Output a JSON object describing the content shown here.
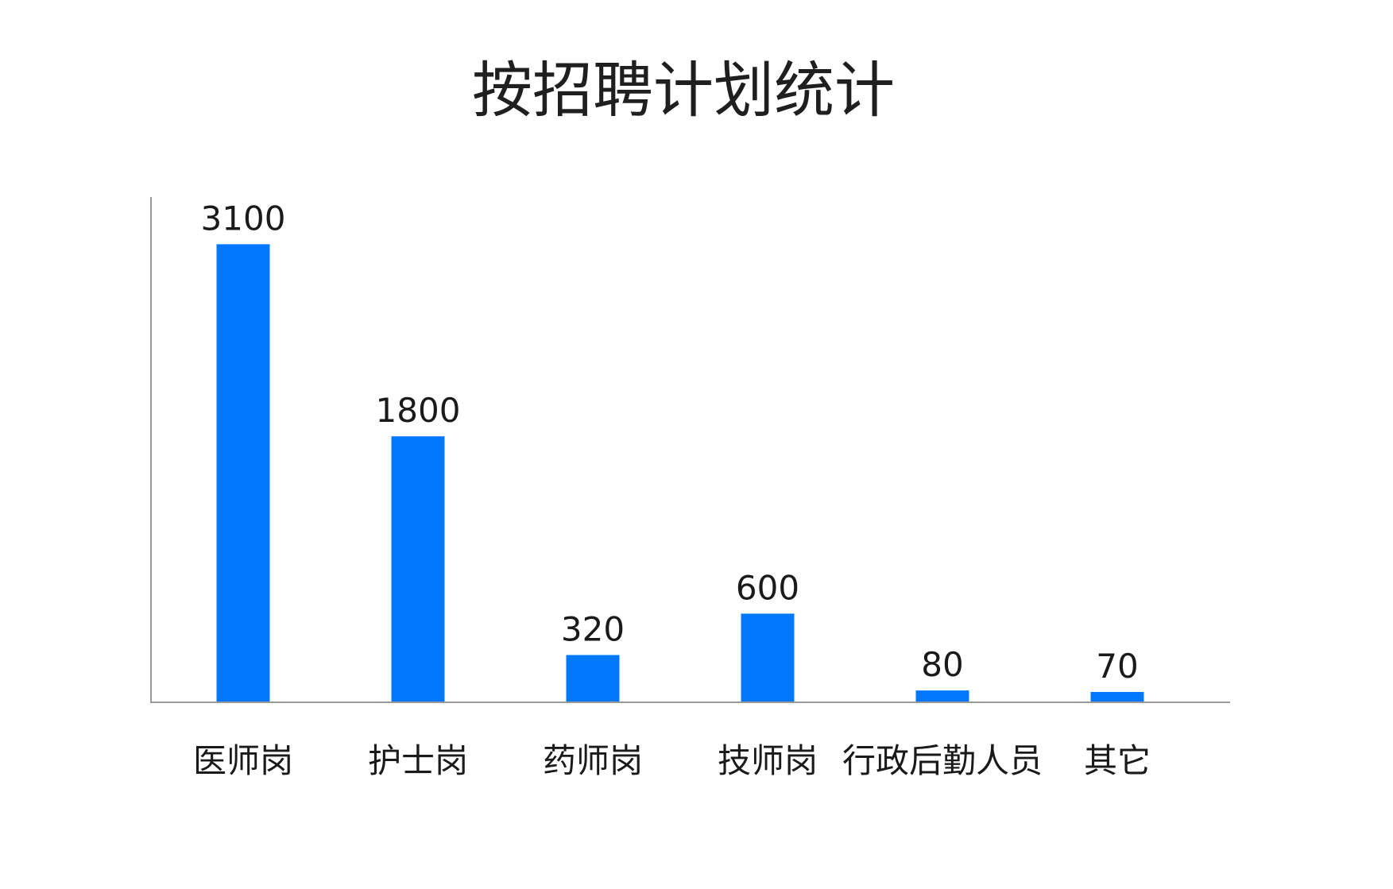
{
  "chart_data": {
    "type": "bar",
    "title": "按招聘计划统计",
    "categories": [
      "医师岗",
      "护士岗",
      "药师岗",
      "技师岗",
      "行政后勤人员",
      "其它"
    ],
    "values": [
      3100,
      1800,
      320,
      600,
      80,
      70
    ],
    "data_labels": [
      "3100",
      "1800",
      "320",
      "600",
      "80",
      "70"
    ],
    "xlabel": "",
    "ylabel": "",
    "ylim": [
      0,
      3410
    ],
    "grid": false,
    "legend": "none",
    "colors": {
      "bar": "#0178fe",
      "axis": "#9a9a9a",
      "text": "#1a1a1a"
    }
  }
}
